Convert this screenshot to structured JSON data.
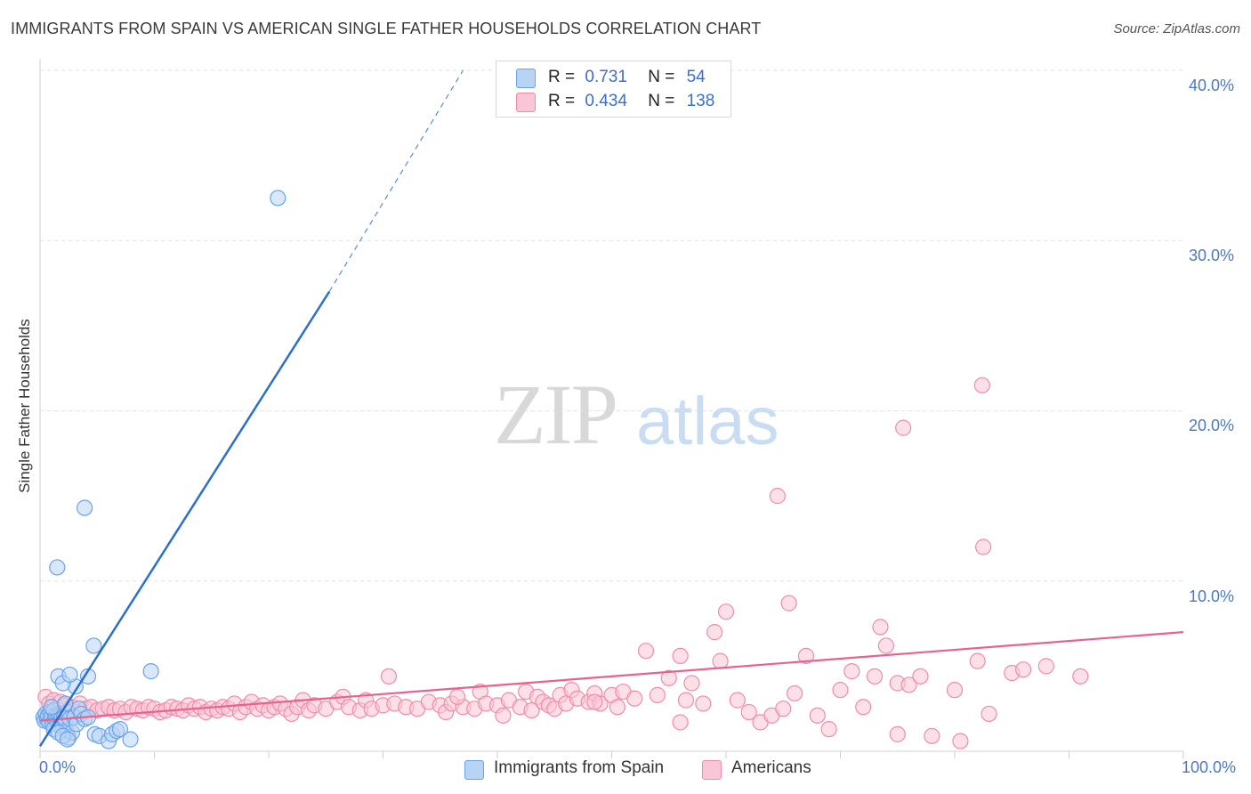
{
  "title": "IMMIGRANTS FROM SPAIN VS AMERICAN SINGLE FATHER HOUSEHOLDS CORRELATION CHART",
  "source": "Source: ZipAtlas.com",
  "watermark": {
    "zip": "ZIP",
    "atlas": "atlas"
  },
  "legend": {
    "rows": [
      {
        "r_label": "R =",
        "r_value": "0.731",
        "n_label": "N =",
        "n_value": "54"
      },
      {
        "r_label": "R =",
        "r_value": "0.434",
        "n_label": "N =",
        "n_value": "138"
      }
    ]
  },
  "bottom_legend": {
    "series1": "Immigrants from Spain",
    "series2": "Americans"
  },
  "colors": {
    "blue": "#6aa3e8",
    "blue_fill": "#b8d4f5",
    "blue_line": "#2a6fd0",
    "pink": "#f08cab",
    "pink_fill": "#f9c6d5",
    "pink_line": "#e8628e",
    "tick": "#4a78c8"
  },
  "chart_data": {
    "type": "scatter",
    "xlabel": "",
    "ylabel": "Single Father Households",
    "xlim": [
      0,
      100
    ],
    "ylim": [
      0,
      40
    ],
    "x_tick_labels": [
      "0.0%",
      "100.0%"
    ],
    "y_ticks": [
      10,
      20,
      30,
      40
    ],
    "y_tick_labels": [
      "10.0%",
      "20.0%",
      "30.0%",
      "40.0%"
    ],
    "grid": true,
    "series": [
      {
        "name": "Immigrants from Spain",
        "points": [
          [
            0.3,
            2.0
          ],
          [
            0.4,
            1.8
          ],
          [
            0.5,
            2.2
          ],
          [
            0.6,
            1.9
          ],
          [
            0.7,
            2.1
          ],
          [
            0.8,
            1.7
          ],
          [
            0.9,
            2.3
          ],
          [
            1.0,
            2.0
          ],
          [
            1.1,
            1.6
          ],
          [
            1.2,
            2.4
          ],
          [
            1.3,
            1.9
          ],
          [
            1.4,
            2.0
          ],
          [
            1.5,
            1.8
          ],
          [
            1.6,
            2.2
          ],
          [
            1.7,
            1.5
          ],
          [
            1.8,
            2.1
          ],
          [
            1.9,
            1.9
          ],
          [
            2.0,
            1.4
          ],
          [
            2.1,
            2.0
          ],
          [
            2.2,
            1.7
          ],
          [
            2.3,
            1.2
          ],
          [
            2.4,
            2.3
          ],
          [
            2.5,
            0.8
          ],
          [
            2.6,
            1.9
          ],
          [
            2.8,
            1.1
          ],
          [
            3.0,
            2.0
          ],
          [
            3.2,
            1.6
          ],
          [
            3.4,
            2.5
          ],
          [
            3.6,
            2.2
          ],
          [
            3.9,
            1.9
          ],
          [
            4.2,
            2.0
          ],
          [
            4.8,
            1.0
          ],
          [
            5.2,
            0.9
          ],
          [
            6.0,
            0.6
          ],
          [
            6.3,
            1.0
          ],
          [
            6.7,
            1.2
          ],
          [
            7.0,
            1.3
          ],
          [
            7.9,
            0.7
          ],
          [
            1.2,
            1.3
          ],
          [
            1.6,
            1.1
          ],
          [
            2.0,
            0.9
          ],
          [
            2.4,
            0.7
          ],
          [
            3.1,
            3.8
          ],
          [
            1.6,
            4.4
          ],
          [
            2.0,
            4.0
          ],
          [
            2.6,
            4.5
          ],
          [
            4.2,
            4.4
          ],
          [
            4.7,
            6.2
          ],
          [
            9.7,
            4.7
          ],
          [
            3.9,
            14.3
          ],
          [
            1.5,
            10.8
          ],
          [
            20.8,
            32.5
          ],
          [
            1.0,
            2.6
          ],
          [
            2.2,
            2.8
          ]
        ],
        "trend": {
          "x0": 0,
          "y0": 0.3,
          "x1": 25.3,
          "y1": 27.0,
          "dash_to_x": 37.0,
          "dash_to_y": 40.0
        }
      },
      {
        "name": "Americans",
        "points": [
          [
            0.5,
            3.2
          ],
          [
            0.8,
            2.8
          ],
          [
            1.2,
            3.0
          ],
          [
            1.5,
            2.5
          ],
          [
            1.8,
            2.9
          ],
          [
            2.2,
            2.7
          ],
          [
            2.5,
            2.4
          ],
          [
            2.8,
            2.6
          ],
          [
            3.2,
            2.3
          ],
          [
            3.5,
            2.8
          ],
          [
            4.0,
            2.5
          ],
          [
            4.5,
            2.6
          ],
          [
            5.0,
            2.4
          ],
          [
            5.5,
            2.5
          ],
          [
            6.0,
            2.6
          ],
          [
            6.5,
            2.4
          ],
          [
            7.0,
            2.5
          ],
          [
            7.5,
            2.3
          ],
          [
            8.0,
            2.6
          ],
          [
            8.5,
            2.5
          ],
          [
            9.0,
            2.4
          ],
          [
            9.5,
            2.6
          ],
          [
            10.0,
            2.5
          ],
          [
            10.5,
            2.3
          ],
          [
            11.0,
            2.4
          ],
          [
            11.5,
            2.6
          ],
          [
            12.0,
            2.5
          ],
          [
            12.5,
            2.4
          ],
          [
            13.0,
            2.7
          ],
          [
            13.5,
            2.5
          ],
          [
            14.0,
            2.6
          ],
          [
            14.5,
            2.3
          ],
          [
            15.0,
            2.5
          ],
          [
            15.5,
            2.4
          ],
          [
            16.0,
            2.6
          ],
          [
            16.5,
            2.5
          ],
          [
            17.0,
            2.8
          ],
          [
            17.5,
            2.3
          ],
          [
            18.0,
            2.6
          ],
          [
            18.5,
            2.9
          ],
          [
            19.0,
            2.5
          ],
          [
            19.5,
            2.7
          ],
          [
            20.0,
            2.4
          ],
          [
            20.5,
            2.6
          ],
          [
            21.0,
            2.8
          ],
          [
            21.5,
            2.5
          ],
          [
            22.0,
            2.2
          ],
          [
            22.5,
            2.6
          ],
          [
            23.0,
            3.0
          ],
          [
            23.5,
            2.4
          ],
          [
            24.0,
            2.7
          ],
          [
            25.0,
            2.5
          ],
          [
            26.0,
            2.9
          ],
          [
            26.5,
            3.2
          ],
          [
            27.0,
            2.6
          ],
          [
            28.0,
            2.4
          ],
          [
            28.5,
            3.0
          ],
          [
            29.0,
            2.5
          ],
          [
            30.0,
            2.7
          ],
          [
            30.5,
            4.4
          ],
          [
            31.0,
            2.8
          ],
          [
            32.0,
            2.6
          ],
          [
            33.0,
            2.5
          ],
          [
            34.0,
            2.9
          ],
          [
            35.0,
            2.7
          ],
          [
            35.5,
            2.3
          ],
          [
            36.0,
            2.8
          ],
          [
            37.0,
            2.6
          ],
          [
            38.0,
            2.5
          ],
          [
            38.5,
            3.5
          ],
          [
            39.0,
            2.8
          ],
          [
            40.0,
            2.7
          ],
          [
            40.5,
            2.1
          ],
          [
            41.0,
            3.0
          ],
          [
            42.0,
            2.6
          ],
          [
            42.5,
            3.5
          ],
          [
            43.0,
            2.4
          ],
          [
            43.5,
            3.2
          ],
          [
            44.0,
            2.9
          ],
          [
            44.5,
            2.7
          ],
          [
            45.0,
            2.5
          ],
          [
            45.5,
            3.3
          ],
          [
            46.0,
            2.8
          ],
          [
            46.5,
            3.6
          ],
          [
            47.0,
            3.1
          ],
          [
            48.0,
            2.9
          ],
          [
            48.5,
            3.4
          ],
          [
            49.0,
            2.8
          ],
          [
            50.0,
            3.3
          ],
          [
            50.5,
            2.6
          ],
          [
            51.0,
            3.5
          ],
          [
            52.0,
            3.1
          ],
          [
            53.0,
            5.9
          ],
          [
            54.0,
            3.3
          ],
          [
            55.0,
            4.3
          ],
          [
            56.0,
            1.7
          ],
          [
            56.5,
            3.0
          ],
          [
            57.0,
            4.0
          ],
          [
            58.0,
            2.8
          ],
          [
            59.0,
            7.0
          ],
          [
            59.5,
            5.3
          ],
          [
            60.0,
            8.2
          ],
          [
            61.0,
            3.0
          ],
          [
            62.0,
            2.3
          ],
          [
            63.0,
            1.7
          ],
          [
            64.0,
            2.1
          ],
          [
            64.5,
            15.0
          ],
          [
            65.0,
            2.5
          ],
          [
            66.0,
            3.4
          ],
          [
            67.0,
            5.6
          ],
          [
            68.0,
            2.1
          ],
          [
            69.0,
            1.3
          ],
          [
            70.0,
            3.6
          ],
          [
            71.0,
            4.7
          ],
          [
            72.0,
            2.6
          ],
          [
            73.0,
            4.4
          ],
          [
            74.0,
            6.2
          ],
          [
            75.0,
            4.0
          ],
          [
            75.5,
            19.0
          ],
          [
            76.0,
            3.9
          ],
          [
            77.0,
            4.4
          ],
          [
            80.0,
            3.6
          ],
          [
            82.0,
            5.3
          ],
          [
            82.5,
            12.0
          ],
          [
            83.0,
            2.2
          ],
          [
            85.0,
            4.6
          ],
          [
            86.0,
            4.8
          ],
          [
            88.0,
            5.0
          ],
          [
            91.0,
            4.4
          ],
          [
            82.4,
            21.5
          ],
          [
            56.0,
            5.6
          ],
          [
            65.5,
            8.7
          ],
          [
            73.5,
            7.3
          ],
          [
            75.0,
            1.0
          ],
          [
            78.0,
            0.9
          ],
          [
            80.5,
            0.6
          ],
          [
            48.5,
            2.9
          ],
          [
            36.5,
            3.2
          ]
        ],
        "trend": {
          "x0": 0,
          "y0": 1.8,
          "x1": 100,
          "y1": 7.0
        }
      }
    ]
  }
}
